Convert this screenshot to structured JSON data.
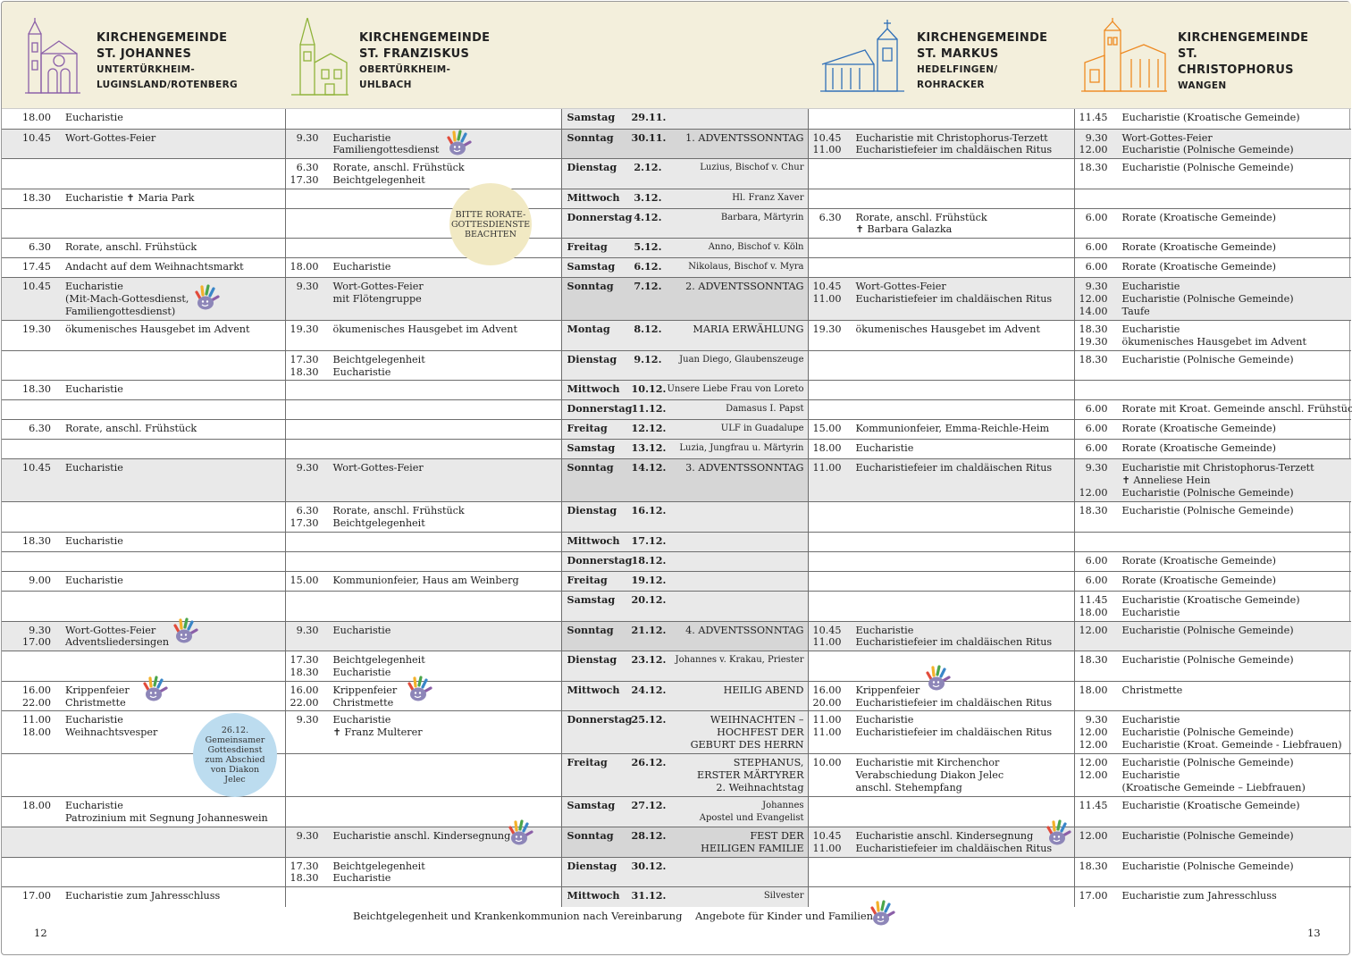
{
  "header": {
    "parishes": [
      {
        "title": "KIRCHENGEMEINDE",
        "name": "ST. JOHANNES",
        "loc1": "UNTERTÜRKHEIM-",
        "loc2": "LUGINSLAND/ROTENBERG",
        "color": "#8b5fa8",
        "icon": "church-icon"
      },
      {
        "title": "KIRCHENGEMEINDE",
        "name": "ST. FRANZISKUS",
        "loc1": "OBERTÜRKHEIM-",
        "loc2": "UHLBACH",
        "color": "#8fb33a",
        "icon": "church-icon"
      },
      {
        "title": "KIRCHENGEMEINDE",
        "name": "ST. MARKUS",
        "loc1": "HEDELFINGEN/",
        "loc2": "ROHRACKER",
        "color": "#2f6fb8",
        "icon": "church-icon"
      },
      {
        "title": "KIRCHENGEMEINDE",
        "name": "ST. CHRISTOPHORUS",
        "loc1": "WANGEN",
        "loc2": "",
        "color": "#ee8a22",
        "icon": "church-icon"
      }
    ]
  },
  "rows": [
    {
      "c1": [
        [
          "18.00",
          "Eucharistie"
        ]
      ],
      "c2": [],
      "day": [
        "Samstag",
        "29.11.",
        ""
      ],
      "c4": [],
      "c5": [
        [
          "11.45",
          "Eucharistie (Kroatische Gemeinde)"
        ]
      ]
    },
    {
      "c1": [
        [
          "10.45",
          "Wort-Gottes-Feier"
        ]
      ],
      "c2": [
        [
          "9.30",
          "Eucharistie"
        ],
        [
          "",
          "Familiengottesdienst"
        ]
      ],
      "day": [
        "Sonntag",
        "30.11.",
        "1. ADVENTSSONNTAG"
      ],
      "c4": [
        [
          "10.45",
          "Eucharistie mit Christophorus-Terzett"
        ],
        [
          "11.00",
          "Eucharistiefeier im chaldäischen Ritus"
        ]
      ],
      "c5": [
        [
          "9.30",
          "Wort-Gottes-Feier"
        ],
        [
          "12.00",
          "Eucharistie (Polnische Gemeinde)"
        ]
      ]
    },
    {
      "c1": [],
      "c2": [
        [
          "6.30",
          "Rorate, anschl. Frühstück"
        ],
        [
          "17.30",
          "Beichtgelegenheit"
        ]
      ],
      "day": [
        "Dienstag",
        "2.12.",
        "Luzius, Bischof v. Chur"
      ],
      "c4": [],
      "c5": [
        [
          "18.30",
          "Eucharistie (Polnische Gemeinde)"
        ]
      ]
    },
    {
      "c1": [
        [
          "18.30",
          "Eucharistie            ✝ Maria Park"
        ]
      ],
      "c2": [],
      "day": [
        "Mittwoch",
        "3.12.",
        "Hl. Franz Xaver"
      ],
      "c4": [],
      "c5": []
    },
    {
      "c1": [],
      "c2": [],
      "day": [
        "Donnerstag",
        "4.12.",
        "Barbara, Märtyrin"
      ],
      "c4": [
        [
          "6.30",
          "Rorate, anschl. Frühstück"
        ],
        [
          "",
          "✝ Barbara Galazka"
        ]
      ],
      "c5": [
        [
          "6.00",
          "Rorate (Kroatische Gemeinde)"
        ]
      ]
    },
    {
      "c1": [
        [
          "6.30",
          "Rorate, anschl. Frühstück"
        ]
      ],
      "c2": [],
      "day": [
        "Freitag",
        "5.12.",
        "Anno, Bischof v. Köln"
      ],
      "c4": [],
      "c5": [
        [
          "6.00",
          "Rorate (Kroatische Gemeinde)"
        ]
      ]
    },
    {
      "c1": [
        [
          "17.45",
          "Andacht auf dem Weihnachtsmarkt"
        ]
      ],
      "c2": [
        [
          "18.00",
          "Eucharistie"
        ]
      ],
      "day": [
        "Samstag",
        "6.12.",
        "Nikolaus, Bischof v. Myra"
      ],
      "c4": [],
      "c5": [
        [
          "6.00",
          "Rorate (Kroatische Gemeinde)"
        ]
      ]
    },
    {
      "c1": [
        [
          "10.45",
          "Eucharistie"
        ],
        [
          "",
          "(Mit-Mach-Gottesdienst,"
        ],
        [
          "",
          "Familiengottesdienst)"
        ]
      ],
      "c2": [
        [
          "9.30",
          "Wort-Gottes-Feier"
        ],
        [
          "",
          "mit Flötengruppe"
        ]
      ],
      "day": [
        "Sonntag",
        "7.12.",
        "2. ADVENTSSONNTAG"
      ],
      "c4": [
        [
          "10.45",
          "Wort-Gottes-Feier"
        ],
        [
          "11.00",
          "Eucharistiefeier im chaldäischen Ritus"
        ]
      ],
      "c5": [
        [
          "9.30",
          "Eucharistie"
        ],
        [
          "12.00",
          "Eucharistie (Polnische Gemeinde)"
        ],
        [
          "14.00",
          "Taufe"
        ]
      ]
    },
    {
      "c1": [
        [
          "19.30",
          "ökumenisches Hausgebet im Advent"
        ]
      ],
      "c2": [
        [
          "19.30",
          "ökumenisches Hausgebet im Advent"
        ]
      ],
      "day": [
        "Montag",
        "8.12.",
        "MARIA ERWÄHLUNG"
      ],
      "c4": [
        [
          "19.30",
          "ökumenisches Hausgebet im Advent"
        ]
      ],
      "c5": [
        [
          "18.30",
          "Eucharistie"
        ],
        [
          "19.30",
          "ökumenisches Hausgebet im Advent"
        ]
      ]
    },
    {
      "c1": [],
      "c2": [
        [
          "17.30",
          "Beichtgelegenheit"
        ],
        [
          "18.30",
          "Eucharistie"
        ]
      ],
      "day": [
        "Dienstag",
        "9.12.",
        "Juan Diego, Glaubenszeuge"
      ],
      "c4": [],
      "c5": [
        [
          "18.30",
          "Eucharistie (Polnische Gemeinde)"
        ]
      ]
    },
    {
      "c1": [
        [
          "18.30",
          "Eucharistie"
        ]
      ],
      "c2": [],
      "day": [
        "Mittwoch",
        "10.12.",
        "Unsere Liebe Frau von Loreto"
      ],
      "c4": [],
      "c5": []
    },
    {
      "c1": [],
      "c2": [],
      "day": [
        "Donnerstag",
        "11.12.",
        "Damasus I. Papst"
      ],
      "c4": [],
      "c5": [
        [
          "6.00",
          "Rorate mit Kroat. Gemeinde anschl. Frühstück"
        ]
      ]
    },
    {
      "c1": [
        [
          "6.30",
          "Rorate, anschl. Frühstück"
        ]
      ],
      "c2": [],
      "day": [
        "Freitag",
        "12.12.",
        "ULF in Guadalupe"
      ],
      "c4": [
        [
          "15.00",
          "Kommunionfeier, Emma-Reichle-Heim"
        ]
      ],
      "c5": [
        [
          "6.00",
          "Rorate (Kroatische Gemeinde)"
        ]
      ]
    },
    {
      "c1": [],
      "c2": [],
      "day": [
        "Samstag",
        "13.12.",
        "Luzia, Jungfrau u. Märtyrin"
      ],
      "c4": [
        [
          "18.00",
          "Eucharistie"
        ]
      ],
      "c5": [
        [
          "6.00",
          "Rorate (Kroatische Gemeinde)"
        ]
      ]
    },
    {
      "c1": [
        [
          "10.45",
          "Eucharistie"
        ]
      ],
      "c2": [
        [
          "9.30",
          "Wort-Gottes-Feier"
        ]
      ],
      "day": [
        "Sonntag",
        "14.12.",
        "3. ADVENTSSONNTAG"
      ],
      "c4": [
        [
          "11.00",
          "Eucharistiefeier im chaldäischen Ritus"
        ]
      ],
      "c5": [
        [
          "9.30",
          "Eucharistie mit Christophorus-Terzett"
        ],
        [
          "",
          "✝ Anneliese Hein"
        ],
        [
          "12.00",
          "Eucharistie (Polnische Gemeinde)"
        ]
      ]
    },
    {
      "c1": [],
      "c2": [
        [
          "6.30",
          "Rorate, anschl. Frühstück"
        ],
        [
          "17.30",
          "Beichtgelegenheit"
        ]
      ],
      "day": [
        "Dienstag",
        "16.12.",
        ""
      ],
      "c4": [],
      "c5": [
        [
          "18.30",
          "Eucharistie (Polnische Gemeinde)"
        ]
      ]
    },
    {
      "c1": [
        [
          "18.30",
          "Eucharistie"
        ]
      ],
      "c2": [],
      "day": [
        "Mittwoch",
        "17.12.",
        ""
      ],
      "c4": [],
      "c5": []
    },
    {
      "c1": [],
      "c2": [],
      "day": [
        "Donnerstag",
        "18.12.",
        ""
      ],
      "c4": [],
      "c5": [
        [
          "6.00",
          "Rorate (Kroatische Gemeinde)"
        ]
      ]
    },
    {
      "c1": [
        [
          "9.00",
          "Eucharistie"
        ]
      ],
      "c2": [
        [
          "15.00",
          "Kommunionfeier, Haus am Weinberg"
        ]
      ],
      "day": [
        "Freitag",
        "19.12.",
        ""
      ],
      "c4": [],
      "c5": [
        [
          "6.00",
          "Rorate (Kroatische Gemeinde)"
        ]
      ]
    },
    {
      "c1": [],
      "c2": [],
      "day": [
        "Samstag",
        "20.12.",
        ""
      ],
      "c4": [],
      "c5": [
        [
          "11.45",
          "Eucharistie (Kroatische Gemeinde)"
        ],
        [
          "18.00",
          "Eucharistie"
        ]
      ]
    },
    {
      "c1": [
        [
          "9.30",
          "Wort-Gottes-Feier"
        ],
        [
          "17.00",
          "Adventsliedersingen"
        ]
      ],
      "c2": [
        [
          "9.30",
          "Eucharistie"
        ]
      ],
      "day": [
        "Sonntag",
        "21.12.",
        "4. ADVENTSSONNTAG"
      ],
      "c4": [
        [
          "10.45",
          "Eucharistie"
        ],
        [
          "11.00",
          "Eucharistiefeier im chaldäischen Ritus"
        ]
      ],
      "c5": [
        [
          "12.00",
          "Eucharistie (Polnische Gemeinde)"
        ]
      ]
    },
    {
      "c1": [],
      "c2": [
        [
          "17.30",
          "Beichtgelegenheit"
        ],
        [
          "18.30",
          "Eucharistie"
        ]
      ],
      "day": [
        "Dienstag",
        "23.12.",
        "Johannes v. Krakau, Priester"
      ],
      "c4": [],
      "c5": [
        [
          "18.30",
          "Eucharistie (Polnische Gemeinde)"
        ]
      ]
    },
    {
      "c1": [
        [
          "16.00",
          "Krippenfeier"
        ],
        [
          "22.00",
          "Christmette"
        ]
      ],
      "c2": [
        [
          "16.00",
          "Krippenfeier"
        ],
        [
          "22.00",
          "Christmette"
        ]
      ],
      "day": [
        "Mittwoch",
        "24.12.",
        "HEILIG ABEND"
      ],
      "c4": [
        [
          "16.00",
          "Krippenfeier"
        ],
        [
          "20.00",
          "Eucharistiefeier im chaldäischen Ritus"
        ]
      ],
      "c5": [
        [
          "18.00",
          "Christmette"
        ]
      ]
    },
    {
      "c1": [
        [
          "11.00",
          "Eucharistie"
        ],
        [
          "18.00",
          "Weihnachtsvesper"
        ]
      ],
      "c2": [
        [
          "9.30",
          "Eucharistie"
        ],
        [
          "",
          "✝ Franz Multerer"
        ]
      ],
      "day": [
        "Donnerstag",
        "25.12.",
        "WEIHNACHTEN –|HOCHFEST DER|GEBURT DES HERRN"
      ],
      "c4": [
        [
          "11.00",
          "Eucharistie"
        ],
        [
          "11.00",
          "Eucharistiefeier im chaldäischen Ritus"
        ]
      ],
      "c5": [
        [
          "9.30",
          "Eucharistie"
        ],
        [
          "12.00",
          "Eucharistie (Polnische Gemeinde)"
        ],
        [
          "12.00",
          "Eucharistie (Kroat. Gemeinde - Liebfrauen)"
        ]
      ]
    },
    {
      "c1": [],
      "c2": [],
      "day": [
        "Freitag",
        "26.12.",
        "STEPHANUS,|ERSTER MÄRTYRER|2. Weihnachtstag"
      ],
      "c4": [
        [
          "10.00",
          "Eucharistie mit Kirchenchor"
        ],
        [
          "",
          "Verabschiedung Diakon Jelec"
        ],
        [
          "",
          "anschl. Stehempfang"
        ]
      ],
      "c5": [
        [
          "12.00",
          "Eucharistie (Polnische Gemeinde)"
        ],
        [
          "12.00",
          "Eucharistie"
        ],
        [
          "",
          "(Kroatische Gemeinde – Liebfrauen)"
        ]
      ]
    },
    {
      "c1": [
        [
          "18.00",
          "Eucharistie"
        ],
        [
          "",
          "Patrozinium mit Segnung Johanneswein"
        ]
      ],
      "c2": [],
      "day": [
        "Samstag",
        "27.12.",
        "Johannes|Apostel und Evangelist"
      ],
      "c4": [],
      "c5": [
        [
          "11.45",
          "Eucharistie (Kroatische Gemeinde)"
        ]
      ]
    },
    {
      "c1": [],
      "c2": [
        [
          "9.30",
          "Eucharistie anschl. Kindersegnung"
        ]
      ],
      "day": [
        "Sonntag",
        "28.12.",
        "FEST DER|HEILIGEN FAMILIE"
      ],
      "c4": [
        [
          "10.45",
          "Eucharistie anschl. Kindersegnung"
        ],
        [
          "11.00",
          "Eucharistiefeier im chaldäischen Ritus"
        ]
      ],
      "c5": [
        [
          "12.00",
          "Eucharistie (Polnische Gemeinde)"
        ]
      ]
    },
    {
      "c1": [],
      "c2": [
        [
          "17.30",
          "Beichtgelegenheit"
        ],
        [
          "18.30",
          "Eucharistie"
        ]
      ],
      "day": [
        "Dienstag",
        "30.12.",
        ""
      ],
      "c4": [],
      "c5": [
        [
          "18.30",
          "Eucharistie (Polnische Gemeinde)"
        ]
      ]
    },
    {
      "c1": [
        [
          "17.00",
          "Eucharistie zum Jahresschluss"
        ]
      ],
      "c2": [],
      "day": [
        "Mittwoch",
        "31.12.",
        "Silvester"
      ],
      "c4": [],
      "c5": [
        [
          "17.00",
          "Eucharistie zum Jahresschluss"
        ]
      ]
    }
  ],
  "badges": {
    "rorate": "BITTE RORATE-GOTTESDIENSTE BEACHTEN",
    "jelec": "26.12. Gemeinsamer Gottesdienst zum Abschied von Diakon Jelec"
  },
  "footer": {
    "note": "Beichtgelegenheit und Krankenkommunion nach Vereinbarung",
    "kids": "Angebote für Kinder und Familien",
    "page_left": "12",
    "page_right": "13"
  },
  "colors": {
    "shade": "#e9e9e9",
    "header_bg": "#f3efdc",
    "badge_yellow": "#f1e9c3",
    "badge_blue": "#bcdcef"
  }
}
